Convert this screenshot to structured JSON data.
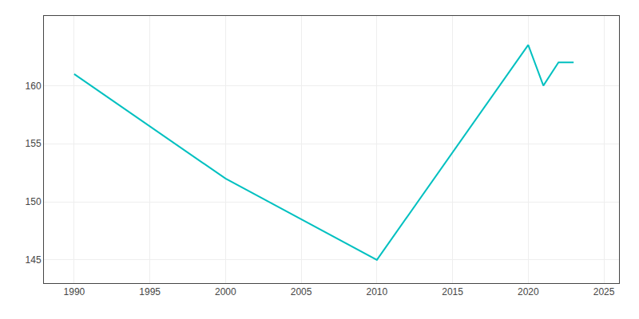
{
  "chart_data": {
    "type": "line",
    "x": [
      1990,
      2000,
      2010,
      2020,
      2021,
      2022,
      2023
    ],
    "values": [
      161.0,
      152.0,
      145.0,
      163.5,
      160.0,
      162.0,
      162.0
    ],
    "color": "#00c0c0",
    "xlim": [
      1988,
      2026
    ],
    "ylim": [
      143.0,
      166.0
    ],
    "xticks": [
      1990,
      1995,
      2000,
      2005,
      2010,
      2015,
      2020,
      2025
    ],
    "yticks": [
      145,
      150,
      155,
      160
    ],
    "grid": true
  }
}
